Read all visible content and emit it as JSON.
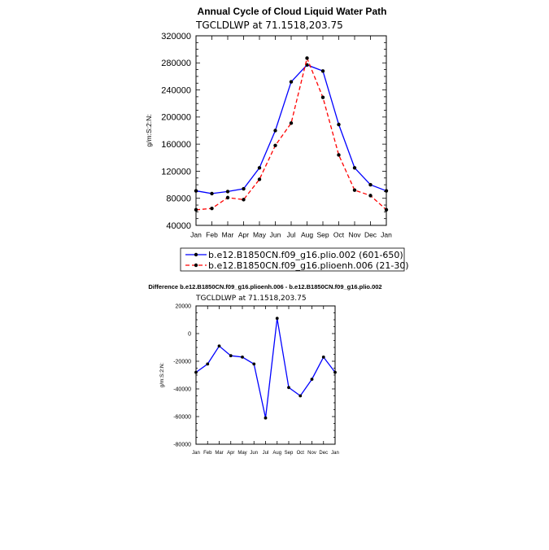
{
  "chart_data": [
    {
      "type": "line",
      "title": "Annual Cycle of Cloud Liquid Water Path",
      "subtitle": "TGCLDLWP  at  71.1518,203.75",
      "xlabel": "",
      "ylabel": "g/m:S:2:N:",
      "categories": [
        "Jan",
        "Feb",
        "Mar",
        "Apr",
        "May",
        "Jun",
        "Jul",
        "Aug",
        "Sep",
        "Oct",
        "Nov",
        "Dec",
        "Jan"
      ],
      "ylim": [
        40000,
        320000
      ],
      "yticks": [
        40000,
        80000,
        120000,
        160000,
        200000,
        240000,
        280000,
        320000
      ],
      "series": [
        {
          "name": "b.e12.B1850CN.f09_g16.plio.002 (601-650)",
          "color": "#0000ff",
          "dash": "solid",
          "values": [
            91000,
            87000,
            90000,
            94000,
            125000,
            180000,
            252000,
            277000,
            268000,
            189000,
            125000,
            100000,
            91000
          ]
        },
        {
          "name": "b.e12.B1850CN.f09_g16.plioenh.006 (21-30)",
          "color": "#ff0000",
          "dash": "dashed",
          "values": [
            63000,
            65000,
            81000,
            78000,
            108000,
            158000,
            191000,
            287000,
            229000,
            144000,
            92000,
            84000,
            63000
          ]
        }
      ]
    },
    {
      "type": "line",
      "title": "Difference b.e12.B1850CN.f09_g16.plioenh.006 - b.e12.B1850CN.f09_g16.plio.002",
      "subtitle": "TGCLDLWP  at  71.1518,203.75",
      "xlabel": "",
      "ylabel": "g/m:S:2:N:",
      "categories": [
        "Jan",
        "Feb",
        "Mar",
        "Apr",
        "May",
        "Jun",
        "Jul",
        "Aug",
        "Sep",
        "Oct",
        "Nov",
        "Dec",
        "Jan"
      ],
      "ylim": [
        -80000,
        20000
      ],
      "yticks": [
        -80000,
        -60000,
        -40000,
        -20000,
        0,
        20000
      ],
      "series": [
        {
          "name": "difference",
          "color": "#0000ff",
          "dash": "solid",
          "values": [
            -28000,
            -22000,
            -9000,
            -16000,
            -17000,
            -22000,
            -61000,
            11000,
            -39000,
            -45000,
            -33000,
            -17000,
            -28000
          ]
        }
      ]
    }
  ]
}
